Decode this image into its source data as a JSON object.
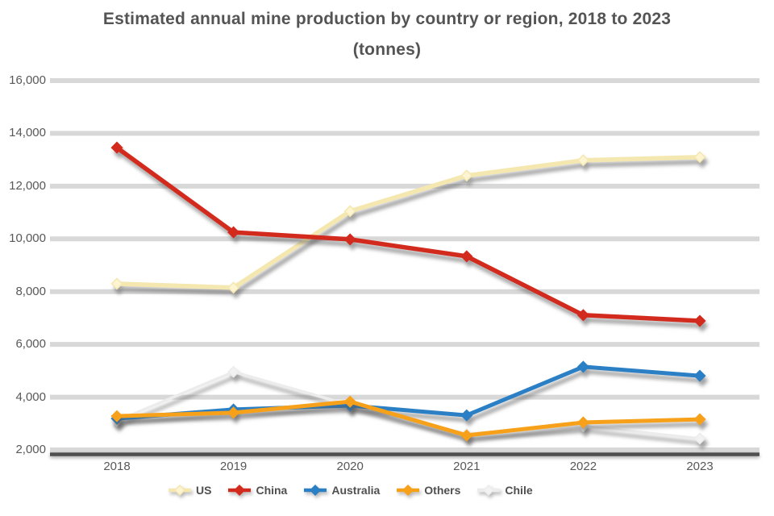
{
  "title": {
    "line1": "Estimated annual mine production by country or region, 2018 to 2023",
    "line2": "(tonnes)"
  },
  "colors": {
    "background": "#ffffff",
    "gridline": "#d8d8d8",
    "axis_line": "#4f4f4f",
    "title_text": "#545454",
    "axis_text": "#58585a",
    "legend_text": "#4f4f4f"
  },
  "chart_data": {
    "type": "line",
    "title": "Estimated annual mine production by country or region, 2018 to 2023",
    "subtitle": "(tonnes)",
    "xlabel": "",
    "ylabel": "",
    "ylim": [
      2000,
      16000
    ],
    "ytick_labels": [
      "2,000",
      "4,000",
      "6,000",
      "8,000",
      "10,000",
      "12,000",
      "14,000",
      "16,000"
    ],
    "grid": "horizontal",
    "legend_position": "bottom",
    "categories": [
      "2018",
      "2019",
      "2020",
      "2021",
      "2022",
      "2023"
    ],
    "series": [
      {
        "name": "Chile",
        "color": "#ececec",
        "marker_fill": "#f2f2f2",
        "line_width": 3.5,
        "values": [
          3100,
          4960,
          3700,
          2610,
          2900,
          2430
        ]
      },
      {
        "name": "Australia",
        "color": "#2b7fc4",
        "marker_fill": "#2b7fc4",
        "line_width": 5,
        "values": [
          3190,
          3530,
          3680,
          3310,
          5150,
          4810
        ]
      },
      {
        "name": "Others",
        "color": "#f7a11a",
        "marker_fill": "#f7a11a",
        "line_width": 5,
        "values": [
          3280,
          3410,
          3830,
          2550,
          3040,
          3160
        ]
      },
      {
        "name": "US",
        "color": "#f5e7b0",
        "marker_fill": "#fdf4d2",
        "line_width": 5.5,
        "values": [
          8300,
          8150,
          11050,
          12400,
          12980,
          13100
        ]
      },
      {
        "name": "China",
        "color": "#d32a1e",
        "marker_fill": "#d32a1e",
        "line_width": 5.5,
        "values": [
          13460,
          10250,
          9980,
          9340,
          7110,
          6890
        ]
      }
    ],
    "legend_order": [
      "US",
      "China",
      "Australia",
      "Others",
      "Chile"
    ]
  }
}
